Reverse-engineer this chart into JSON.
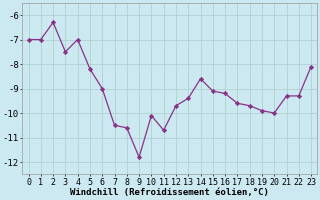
{
  "x": [
    0,
    1,
    2,
    3,
    4,
    5,
    6,
    7,
    8,
    9,
    10,
    11,
    12,
    13,
    14,
    15,
    16,
    17,
    18,
    19,
    20,
    21,
    22,
    23
  ],
  "y": [
    -7.0,
    -7.0,
    -6.3,
    -7.5,
    -7.0,
    -8.2,
    -9.0,
    -10.5,
    -10.6,
    -11.8,
    -10.1,
    -10.7,
    -9.7,
    -9.4,
    -8.6,
    -9.1,
    -9.2,
    -9.6,
    -9.7,
    -9.9,
    -10.0,
    -9.3,
    -9.3,
    -8.1
  ],
  "line_color": "#883388",
  "marker": "D",
  "marker_size": 2.2,
  "bg_color": "#cce8f0",
  "grid_color": "#aacccc",
  "xlabel": "Windchill (Refroidissement éolien,°C)",
  "xlabel_fontsize": 6.5,
  "xlim": [
    -0.5,
    23.5
  ],
  "ylim": [
    -12.5,
    -5.5
  ],
  "yticks": [
    -12,
    -11,
    -10,
    -9,
    -8,
    -7,
    -6
  ],
  "xticks": [
    0,
    1,
    2,
    3,
    4,
    5,
    6,
    7,
    8,
    9,
    10,
    11,
    12,
    13,
    14,
    15,
    16,
    17,
    18,
    19,
    20,
    21,
    22,
    23
  ],
  "tick_fontsize": 6.0,
  "ytick_fontsize": 6.5
}
